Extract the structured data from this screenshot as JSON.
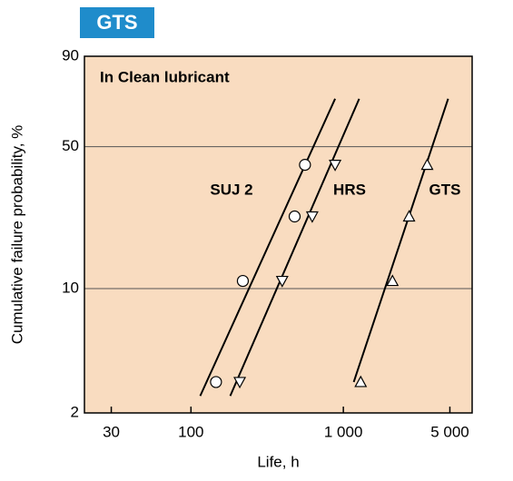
{
  "header": {
    "title": "GTS"
  },
  "chart_data": {
    "type": "scatter",
    "annotation": "In Clean lubricant",
    "x_label": "Life, h",
    "y_label": "Cumulative failure probability, %",
    "xscale": "log",
    "yscale": "weibull",
    "xlim": [
      20,
      7000
    ],
    "ylim": [
      2,
      90
    ],
    "xticks": [
      30,
      100,
      {
        "value": 1000,
        "label": "1 000"
      },
      {
        "value": 5000,
        "label": "5 000"
      }
    ],
    "yticks": [
      2,
      10,
      50,
      90
    ],
    "grid": true,
    "background": "#f9dcc0",
    "series": [
      {
        "name": "SUJ 2",
        "marker": "circle",
        "color": "#000000",
        "x": [
          146,
          219,
          479,
          560
        ],
        "values": [
          3,
          11,
          24,
          42
        ],
        "fit": {
          "x": [
            115,
            883
          ],
          "values": [
            2.5,
            73
          ]
        }
      },
      {
        "name": "HRS",
        "marker": "triangle-down",
        "color": "#000000",
        "x": [
          209,
          397,
          625,
          883
        ],
        "values": [
          3,
          11,
          24,
          42
        ],
        "fit": {
          "x": [
            181,
            1270
          ],
          "values": [
            2.5,
            73
          ]
        }
      },
      {
        "name": "GTS",
        "marker": "triangle-up",
        "color": "#000000",
        "x": [
          1300,
          2100,
          2700,
          3550
        ],
        "values": [
          3,
          11,
          24,
          42
        ],
        "fit": {
          "x": [
            1170,
            4870
          ],
          "values": [
            3,
            73
          ]
        }
      }
    ]
  }
}
